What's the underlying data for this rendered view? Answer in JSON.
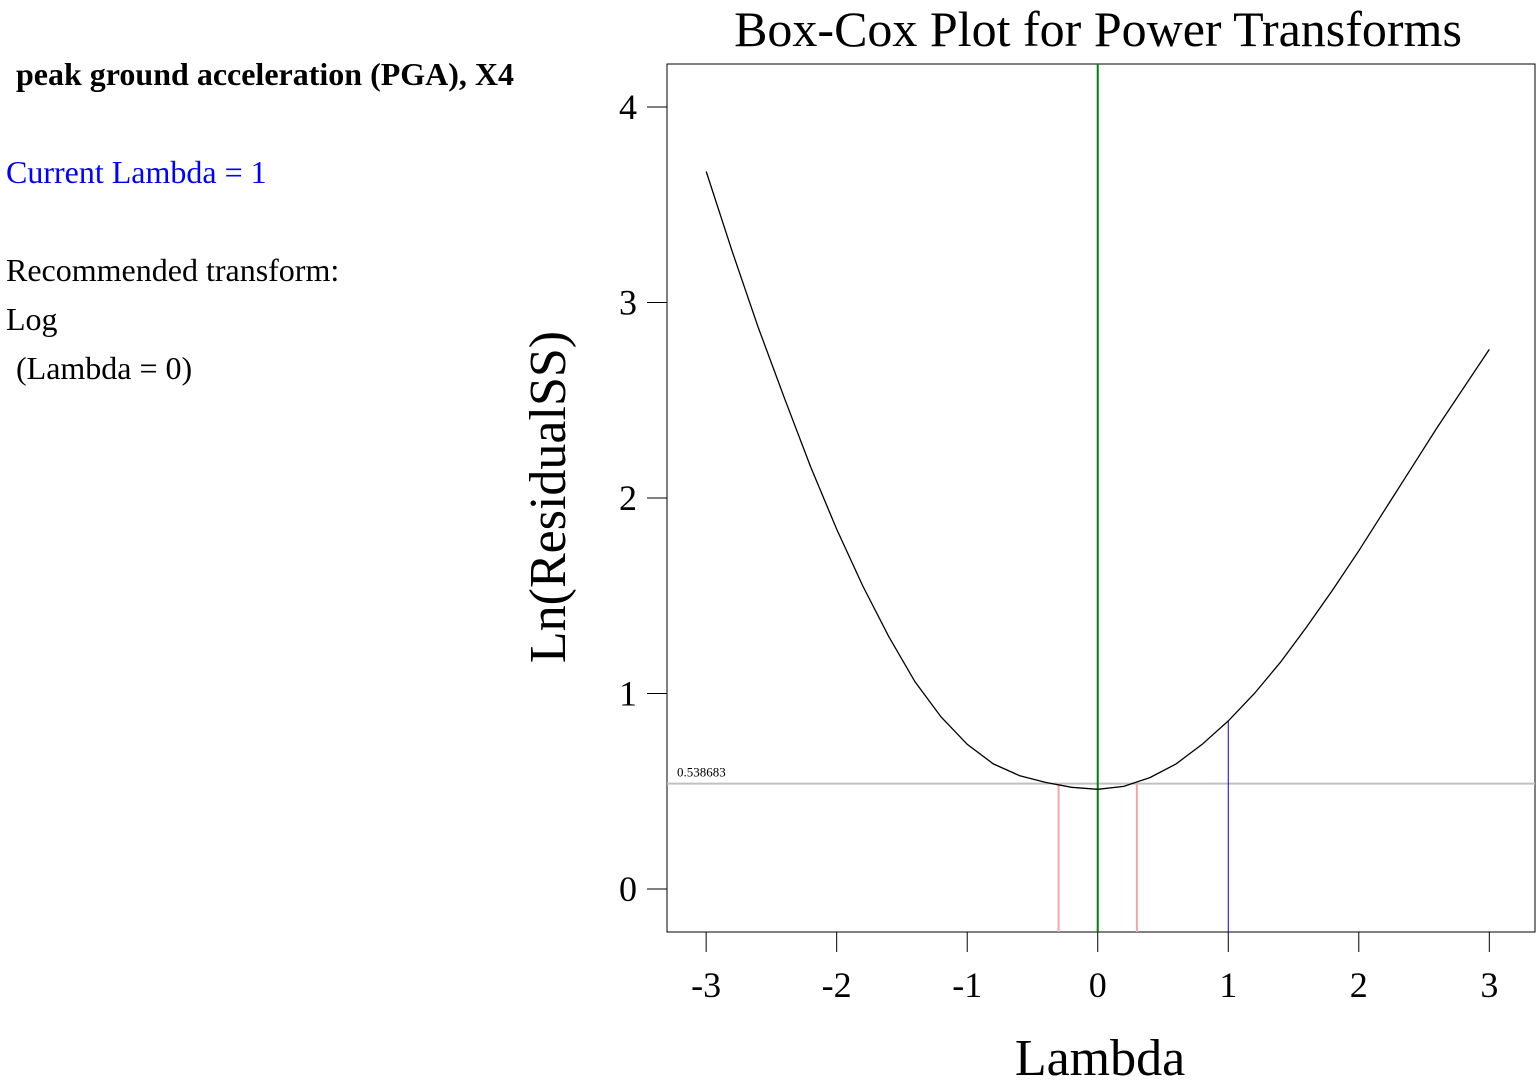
{
  "panel": {
    "variable_title": "peak ground acceleration (PGA), X4",
    "current_lambda": "Current Lambda = 1",
    "recommended_label": "Recommended transform:",
    "recommended_name": "Log",
    "recommended_lambda": " (Lambda = 0)"
  },
  "chart_data": {
    "type": "line",
    "title": "Box-Cox Plot for Power Transforms",
    "xlabel": "Lambda",
    "ylabel": "Ln(ResidualSS)",
    "xlim": [
      -3.3,
      3.35
    ],
    "ylim": [
      -0.22,
      4.22
    ],
    "xticks": [
      -3,
      -2,
      -1,
      0,
      1,
      2,
      3
    ],
    "yticks": [
      0,
      1,
      2,
      3,
      4
    ],
    "grid": false,
    "legend": "none",
    "series": [
      {
        "x": [
          -3,
          -2.8,
          -2.6,
          -2.4,
          -2.2,
          -2,
          -1.8,
          -1.6,
          -1.4,
          -1.2,
          -1,
          -0.8,
          -0.6,
          -0.4,
          -0.2,
          0,
          0.2,
          0.4,
          0.6,
          0.8,
          1,
          1.2,
          1.4,
          1.6,
          1.8,
          2,
          2.2,
          2.4,
          2.6,
          2.8,
          3
        ],
        "y": [
          3.67,
          3.26,
          2.87,
          2.51,
          2.16,
          1.84,
          1.55,
          1.29,
          1.06,
          0.88,
          0.74,
          0.64,
          0.58,
          0.545,
          0.52,
          0.51,
          0.525,
          0.57,
          0.64,
          0.74,
          0.86,
          1.0,
          1.16,
          1.34,
          1.53,
          1.73,
          1.94,
          2.15,
          2.36,
          2.56,
          2.76
        ]
      }
    ],
    "threshold": {
      "value": 0.538683,
      "label": "0.538683"
    },
    "ci_bounds": [
      -0.3,
      0.3
    ],
    "best_lambda": 0,
    "current_lambda": 1,
    "colors": {
      "curve": "#000000",
      "best": "#008000",
      "current": "#0000ff",
      "ci": "#f4a6a6",
      "threshold": "#c0c0c0"
    }
  }
}
